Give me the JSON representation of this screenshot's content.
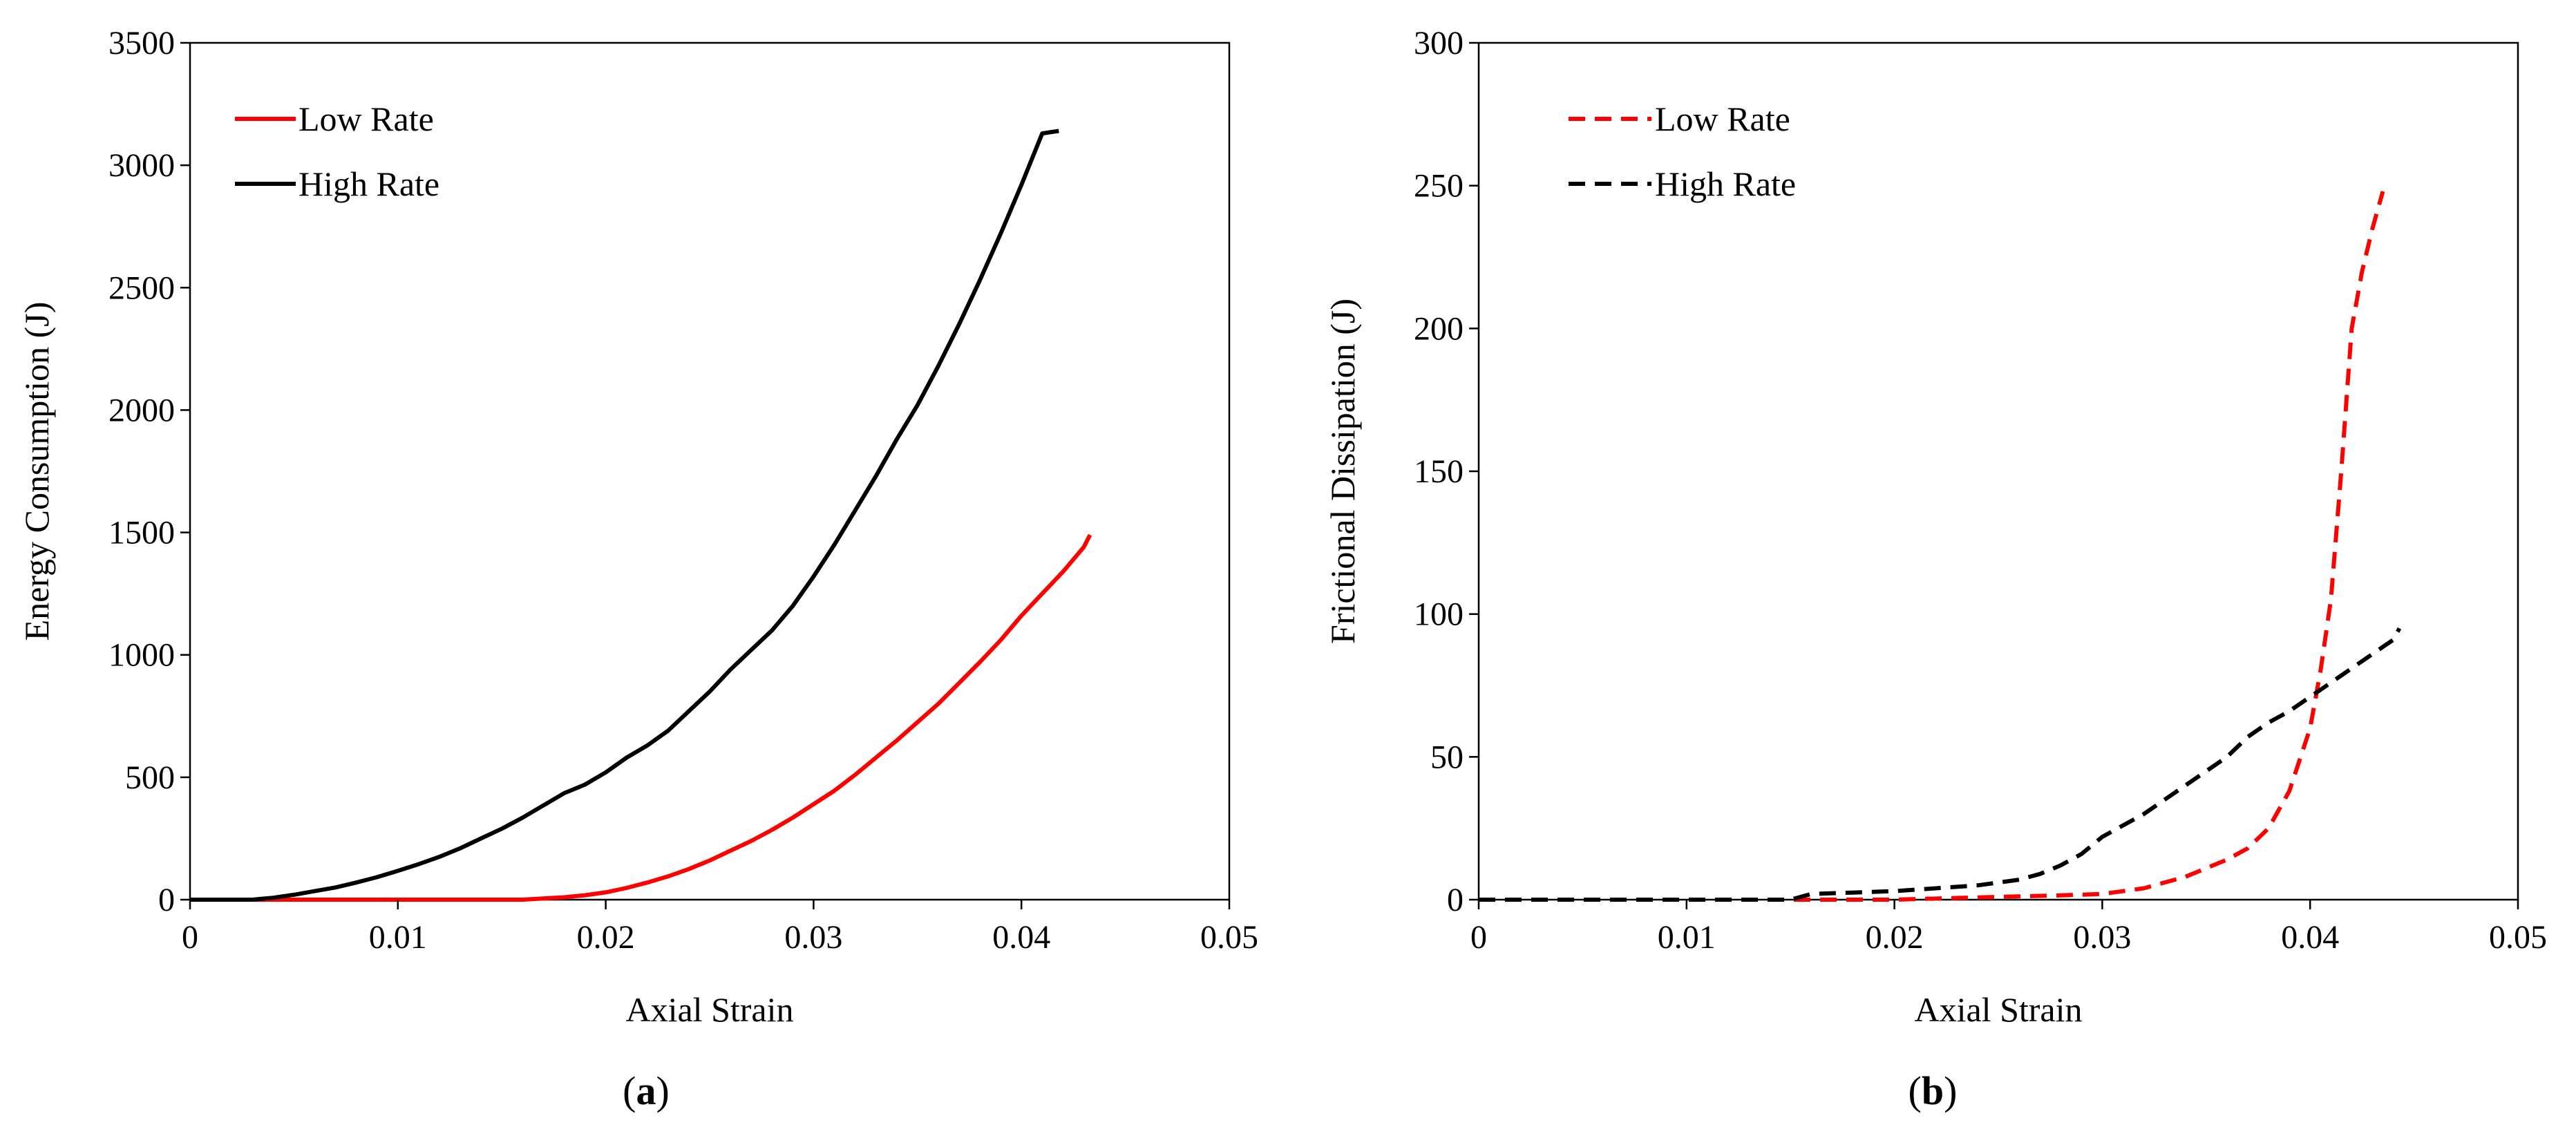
{
  "chart_data": [
    {
      "type": "line",
      "panel_label": {
        "open": "(",
        "letter": "a",
        "close": ")"
      },
      "xlabel": "Axial Strain",
      "ylabel": "Energy Consumption (J)",
      "xlim": [
        0,
        0.05
      ],
      "ylim": [
        0,
        3500
      ],
      "xticks": [
        0,
        0.01,
        0.02,
        0.03,
        0.04,
        0.05
      ],
      "xtick_labels": [
        "0",
        "0.01",
        "0.02",
        "0.03",
        "0.04",
        "0.05"
      ],
      "yticks": [
        0,
        500,
        1000,
        1500,
        2000,
        2500,
        3000,
        3500
      ],
      "ytick_labels": [
        "0",
        "500",
        "1000",
        "1500",
        "2000",
        "2500",
        "3000",
        "3500"
      ],
      "grid": false,
      "legend_position": "top-left",
      "series": [
        {
          "name": "Low Rate",
          "color": "#ff0000",
          "dashed": false,
          "x": [
            0,
            0.01,
            0.016,
            0.017,
            0.018,
            0.019,
            0.02,
            0.021,
            0.022,
            0.023,
            0.024,
            0.025,
            0.026,
            0.027,
            0.028,
            0.029,
            0.03,
            0.031,
            0.032,
            0.033,
            0.034,
            0.035,
            0.036,
            0.037,
            0.038,
            0.039,
            0.04,
            0.041,
            0.042,
            0.043,
            0.0433
          ],
          "y": [
            0,
            0,
            0,
            5,
            10,
            18,
            30,
            48,
            70,
            95,
            125,
            160,
            200,
            240,
            285,
            335,
            390,
            445,
            510,
            580,
            650,
            725,
            800,
            885,
            970,
            1060,
            1160,
            1250,
            1340,
            1440,
            1490
          ]
        },
        {
          "name": "High Rate",
          "color": "#000000",
          "dashed": false,
          "x": [
            0,
            0.003,
            0.004,
            0.005,
            0.006,
            0.007,
            0.008,
            0.009,
            0.01,
            0.011,
            0.012,
            0.013,
            0.014,
            0.015,
            0.016,
            0.017,
            0.018,
            0.019,
            0.02,
            0.021,
            0.022,
            0.023,
            0.024,
            0.025,
            0.026,
            0.027,
            0.028,
            0.029,
            0.03,
            0.031,
            0.032,
            0.033,
            0.034,
            0.035,
            0.036,
            0.037,
            0.038,
            0.039,
            0.04,
            0.041,
            0.0418
          ],
          "y": [
            0,
            0,
            8,
            20,
            35,
            50,
            70,
            92,
            118,
            145,
            175,
            210,
            250,
            290,
            335,
            385,
            435,
            470,
            520,
            580,
            630,
            690,
            770,
            850,
            940,
            1020,
            1100,
            1200,
            1320,
            1450,
            1590,
            1730,
            1880,
            2020,
            2180,
            2350,
            2530,
            2720,
            2920,
            3130,
            3140
          ]
        }
      ]
    },
    {
      "type": "line",
      "panel_label": {
        "open": "(",
        "letter": "b",
        "close": ")"
      },
      "xlabel": "Axial Strain",
      "ylabel": "Frictional Dissipation (J)",
      "xlim": [
        0,
        0.05
      ],
      "ylim": [
        0,
        300
      ],
      "xticks": [
        0,
        0.01,
        0.02,
        0.03,
        0.04,
        0.05
      ],
      "xtick_labels": [
        "0",
        "0.01",
        "0.02",
        "0.03",
        "0.04",
        "0.05"
      ],
      "yticks": [
        0,
        50,
        100,
        150,
        200,
        250,
        300
      ],
      "ytick_labels": [
        "0",
        "50",
        "100",
        "150",
        "200",
        "250",
        "300"
      ],
      "grid": false,
      "legend_position": "top-left",
      "series": [
        {
          "name": "Low Rate",
          "color": "#ff0000",
          "dashed": true,
          "x": [
            0,
            0.02,
            0.025,
            0.028,
            0.03,
            0.032,
            0.034,
            0.036,
            0.037,
            0.038,
            0.039,
            0.04,
            0.0405,
            0.041,
            0.0415,
            0.042,
            0.0425,
            0.043,
            0.0435
          ],
          "y": [
            0,
            0,
            1,
            1.5,
            2,
            4,
            8,
            14,
            18,
            25,
            38,
            60,
            80,
            105,
            150,
            200,
            220,
            235,
            248
          ]
        },
        {
          "name": "High Rate",
          "color": "#000000",
          "dashed": true,
          "x": [
            0,
            0.015,
            0.016,
            0.018,
            0.02,
            0.022,
            0.024,
            0.026,
            0.027,
            0.028,
            0.029,
            0.03,
            0.031,
            0.032,
            0.033,
            0.034,
            0.035,
            0.036,
            0.037,
            0.038,
            0.039,
            0.04,
            0.041,
            0.042,
            0.043,
            0.044,
            0.0443
          ],
          "y": [
            0,
            0,
            2,
            2.5,
            3,
            4,
            5,
            7,
            9,
            12,
            16,
            22,
            26,
            30,
            35,
            40,
            45,
            50,
            57,
            62,
            66,
            71,
            76,
            81,
            86,
            91,
            95
          ]
        }
      ]
    }
  ]
}
